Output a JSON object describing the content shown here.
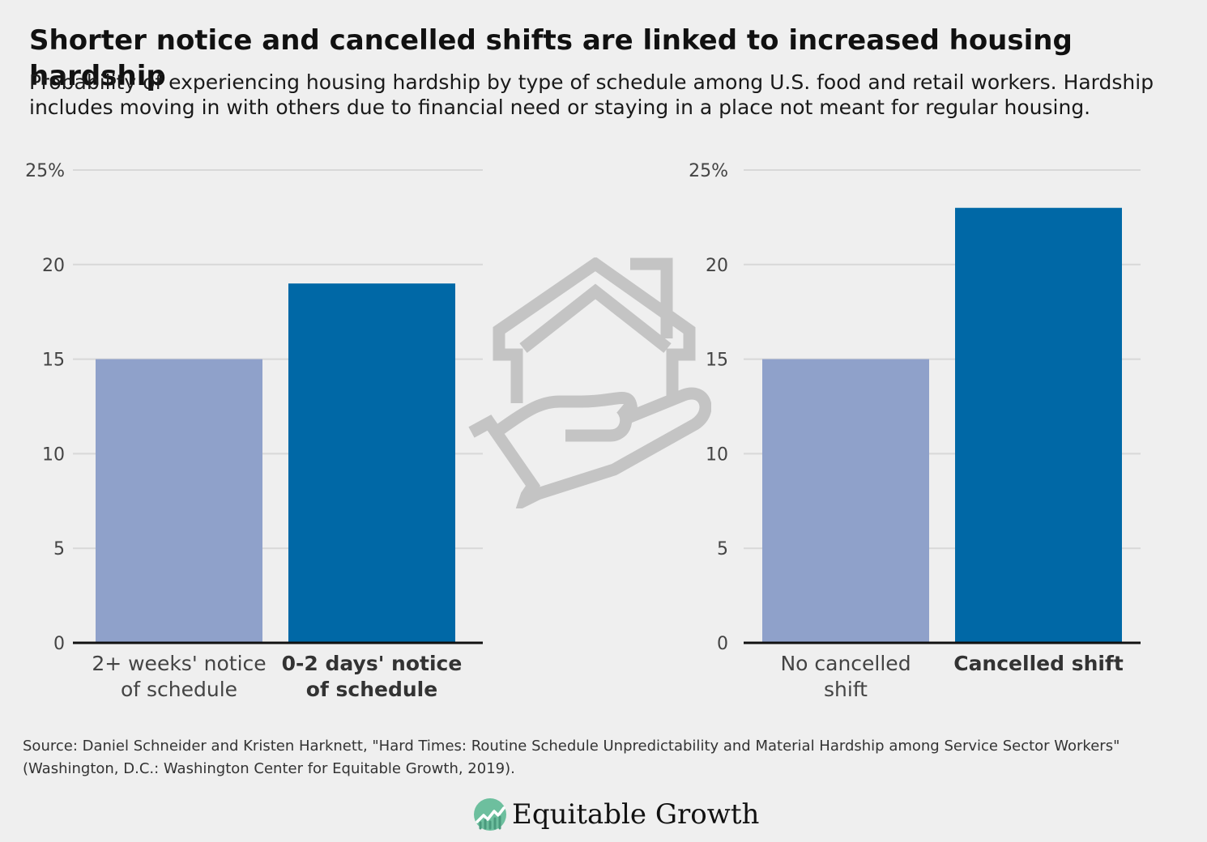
{
  "title": "Shorter notice and cancelled shifts are linked to increased housing hardship",
  "subtitle_line1": "Probability of experiencing housing hardship by type of schedule among U.S. food and retail workers. Hardship",
  "subtitle_line2": "includes moving in with others due to financial need or staying in a place not meant for regular housing.",
  "source_line1": "Source: Daniel Schneider and Kristen Harknett, \"Hard Times: Routine Schedule Unpredictability and Material Hardship among Service Sector Workers\"",
  "source_line2": "(Washington, D.C.: Washington Center for Equitable Growth, 2019).",
  "brand": {
    "name": "Equitable Growth",
    "icon": "equitable-growth-logo-icon"
  },
  "decorative_icon": "house-in-hand-icon",
  "colors": {
    "light_bar": "#8fa1ca",
    "dark_bar": "#0068a6",
    "grid": "#d8d8d8",
    "axis": "#111111"
  },
  "chart_data": [
    {
      "type": "bar",
      "categories": [
        {
          "lines": [
            "2+ weeks' notice",
            "of schedule"
          ],
          "bold": false
        },
        {
          "lines": [
            "0-2 days' notice",
            "of schedule"
          ],
          "bold": true
        }
      ],
      "values": [
        15,
        19
      ],
      "bar_colors": [
        "#8fa1ca",
        "#0068a6"
      ],
      "ylim": [
        0,
        25
      ],
      "yticks": [
        0,
        5,
        10,
        15,
        20,
        25
      ],
      "ytick_labels": [
        "0",
        "5",
        "10",
        "15",
        "20",
        "25%"
      ],
      "grid": true
    },
    {
      "type": "bar",
      "categories": [
        {
          "lines": [
            "No cancelled",
            "shift"
          ],
          "bold": false
        },
        {
          "lines": [
            "Cancelled shift"
          ],
          "bold": true
        }
      ],
      "values": [
        15,
        23
      ],
      "bar_colors": [
        "#8fa1ca",
        "#0068a6"
      ],
      "ylim": [
        0,
        25
      ],
      "yticks": [
        0,
        5,
        10,
        15,
        20,
        25
      ],
      "ytick_labels": [
        "0",
        "5",
        "10",
        "15",
        "20",
        "25%"
      ],
      "grid": true
    }
  ]
}
